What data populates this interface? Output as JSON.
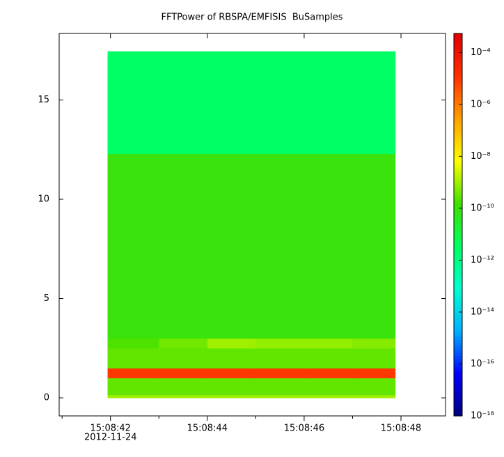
{
  "chart_data": {
    "type": "spectrogram",
    "title": "FFTPower of RBSPA/EMFISIS  BuSamples",
    "x_bins": [
      41.94,
      43,
      44,
      45,
      46,
      47,
      47.88
    ],
    "y_bins": [
      0,
      0.15,
      1.0,
      1.5,
      2.5,
      3.0,
      12.3,
      17.45
    ],
    "values": [
      [
        1e-09,
        1e-09,
        1e-09,
        1e-09,
        1e-09,
        1e-09
      ],
      [
        3e-10,
        3e-10,
        3e-10,
        3e-10,
        3e-10,
        3e-10
      ],
      [
        1e-05,
        1e-05,
        1e-05,
        1e-05,
        1e-05,
        1e-05
      ],
      [
        3e-10,
        3e-10,
        3e-10,
        3e-10,
        3e-10,
        3e-10
      ],
      [
        2e-10,
        4e-10,
        1e-09,
        8e-10,
        8e-10,
        6e-10
      ],
      [
        1e-10,
        1e-10,
        1e-10,
        1e-10,
        1e-10,
        1e-10
      ],
      [
        3e-12,
        3e-12,
        3e-12,
        3e-12,
        3e-12,
        3e-12
      ]
    ],
    "xlim": [
      40.94,
      48.92
    ],
    "xticks": [
      {
        "value": 42,
        "label": "15:08:42"
      },
      {
        "value": 44,
        "label": "15:08:44"
      },
      {
        "value": 46,
        "label": "15:08:46"
      },
      {
        "value": 48,
        "label": "15:08:48"
      }
    ],
    "xminor_ticks": [
      41,
      43,
      45,
      47
    ],
    "x_sublabel": "2012-11-24",
    "ylim": [
      -0.91,
      18.35
    ],
    "yticks": [
      0,
      5,
      10,
      15
    ],
    "zlim": [
      1e-18,
      0.00054
    ],
    "zlog": true,
    "zticks": [
      {
        "value": 0.0001,
        "label": "10⁻⁴"
      },
      {
        "value": 1e-06,
        "label": "10⁻⁶"
      },
      {
        "value": 1e-08,
        "label": "10⁻⁸"
      },
      {
        "value": 1e-10,
        "label": "10⁻¹⁰"
      },
      {
        "value": 1e-12,
        "label": "10⁻¹²"
      },
      {
        "value": 1e-14,
        "label": "10⁻¹⁴"
      },
      {
        "value": 1e-16,
        "label": "10⁻¹⁶"
      },
      {
        "value": 1e-18,
        "label": "10⁻¹⁸"
      }
    ],
    "colormap": [
      "#00007f",
      "#0000ff",
      "#00b0ff",
      "#00ffd0",
      "#00ff60",
      "#40e000",
      "#ffff00",
      "#ffa000",
      "#ff3000",
      "#e00000"
    ]
  }
}
